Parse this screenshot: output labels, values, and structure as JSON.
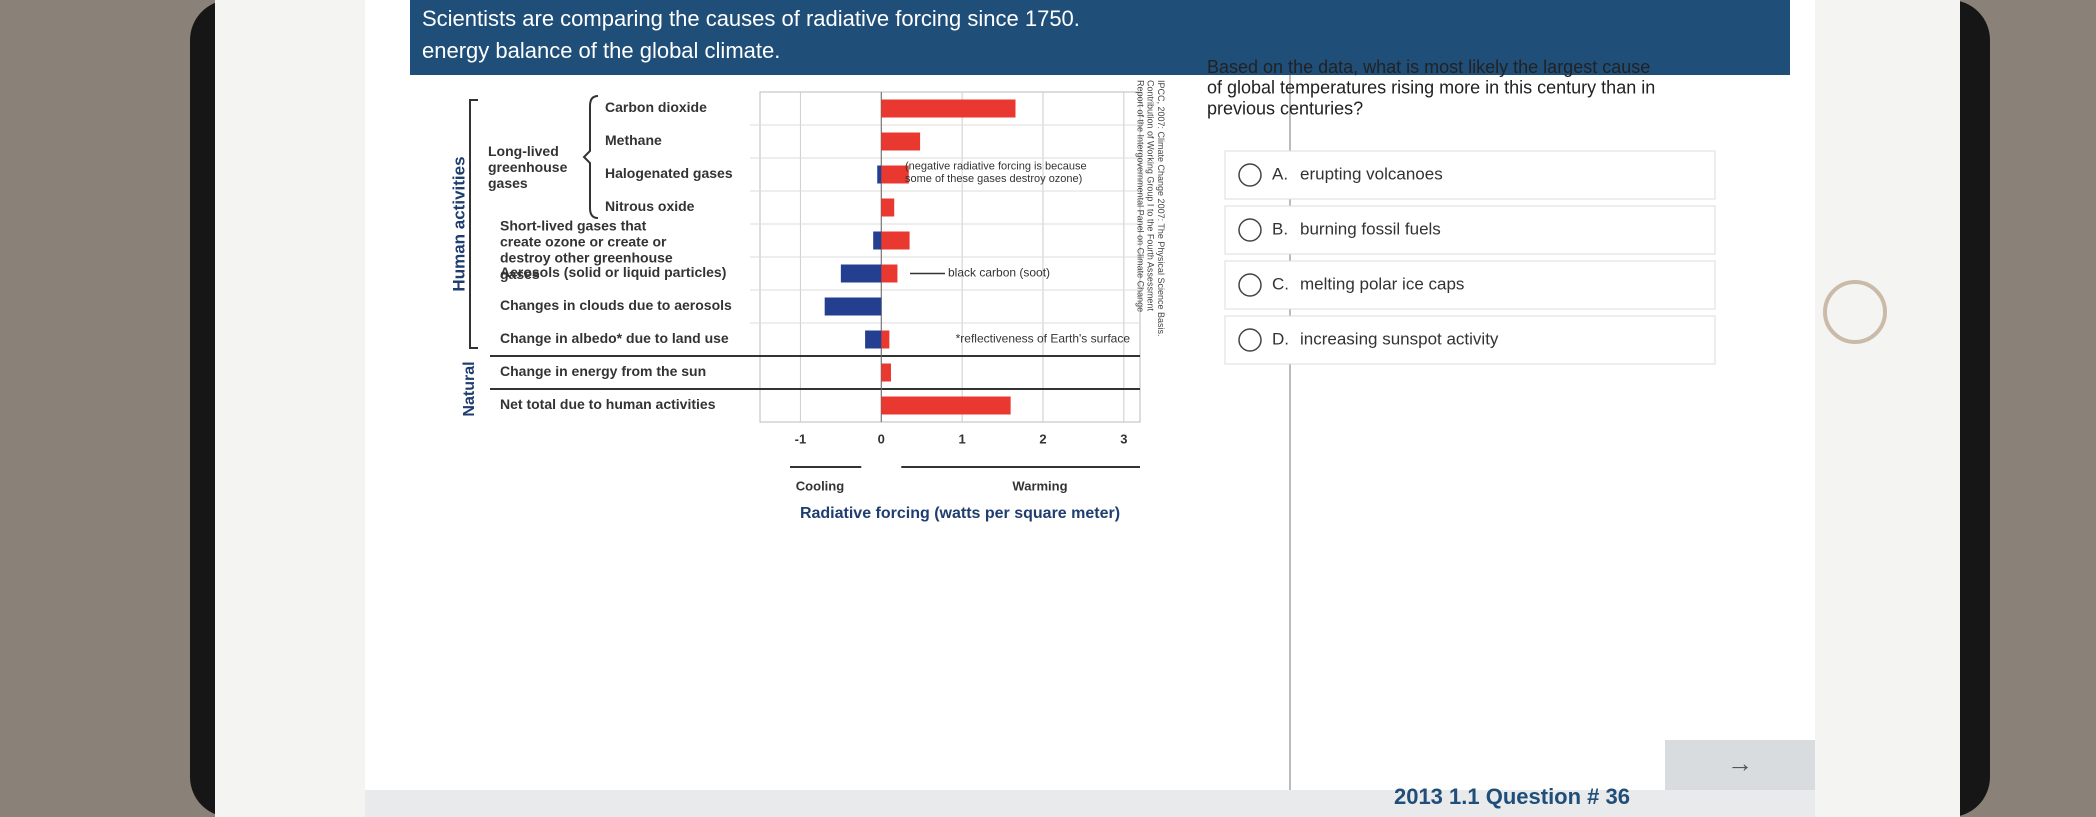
{
  "header": {
    "lines": [
      "Scientists are comparing the causes of radiative forcing since 1750.",
      "energy balance of the global climate."
    ]
  },
  "chart_data": {
    "type": "bar",
    "orientation": "horizontal",
    "categories": [
      "Carbon dioxide",
      "Methane",
      "Halogenated gases",
      "Nitrous oxide",
      "Short-lived gases that create ozone or create or destroy other greenhouse gases",
      "Aerosols (solid or liquid particles)",
      "Changes in clouds due to aerosols",
      "Change in albedo* due to land use",
      "Change in energy from the sun",
      "Net total due to human activities"
    ],
    "series": [
      {
        "color": "#e8382f",
        "values": [
          1.66,
          0.48,
          0.34,
          0.16,
          0.35,
          0.2,
          null,
          0.1,
          0.12,
          1.6
        ]
      },
      {
        "color": "#243f8f",
        "values": [
          null,
          null,
          -0.05,
          null,
          -0.1,
          -0.5,
          -0.7,
          -0.2,
          null,
          null
        ]
      }
    ],
    "xlim": [
      -1.5,
      3.2
    ],
    "xticks": [
      -1,
      0,
      1,
      2,
      3
    ],
    "grid": true,
    "xlabel": "Radiative forcing (watts per square meter)",
    "direction_labels": [
      "Cooling",
      "Warming"
    ],
    "groups": {
      "long_lived": "Long-lived greenhouse gases",
      "human": "Human activities",
      "natural": "Natural"
    },
    "annotations": [
      "(negative radiative forcing is because some of these gases destroy ozone)",
      "black carbon (soot)",
      "*reflectiveness of Earth's surface"
    ],
    "source": "IPCC, 2007: Climate Change 2007: The Physical Science Basis. Contribution of Working Group I to the Fourth Assessment Report of the Intergovernmental Panel on Climate Change"
  },
  "question": {
    "text": "Based on the data, what is most likely the largest cause of global temperatures rising more in this century than in previous centuries?",
    "options": [
      {
        "letter": "A.",
        "text": "erupting volcanoes"
      },
      {
        "letter": "B.",
        "text": "burning fossil fuels"
      },
      {
        "letter": "C.",
        "text": "melting polar ice caps"
      },
      {
        "letter": "D.",
        "text": "increasing sunspot activity"
      }
    ]
  },
  "footer": {
    "label": "2013 1.1 Question # 36",
    "next": "→"
  }
}
